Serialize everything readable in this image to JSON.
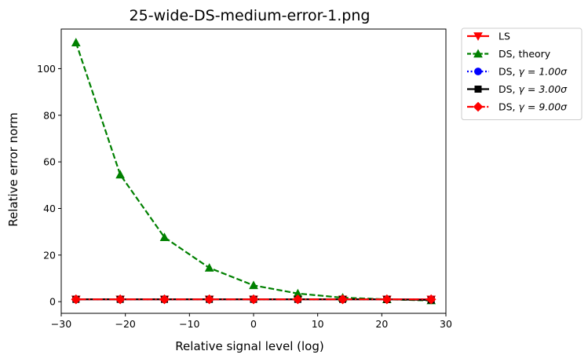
{
  "chart_data": {
    "type": "line",
    "title": "25-wide-DS-medium-error-1.png",
    "xlabel": "Relative signal level (log)",
    "ylabel": "Relative error norm",
    "xlim": [
      -30,
      30
    ],
    "ylim": [
      -5,
      117
    ],
    "xticks": [
      -30,
      -20,
      -10,
      0,
      10,
      20,
      30
    ],
    "xtick_labels": [
      "−30",
      "−20",
      "−10",
      "0",
      "10",
      "20",
      "30"
    ],
    "yticks": [
      0,
      20,
      40,
      60,
      80,
      100
    ],
    "ytick_labels": [
      "0",
      "20",
      "40",
      "60",
      "80",
      "100"
    ],
    "x": [
      -27.7,
      -20.8,
      -13.9,
      -6.9,
      0,
      6.9,
      13.9,
      20.8,
      27.7
    ],
    "legend_position": "outside-top-right",
    "series": [
      {
        "name": "LS",
        "legend_prefix": "LS",
        "legend_gamma": "",
        "color": "#ff0000",
        "marker": "triangle-down",
        "linestyle": "solid",
        "values": [
          1,
          1,
          1,
          1,
          1,
          1,
          1,
          1,
          1
        ]
      },
      {
        "name": "DS, theory",
        "legend_prefix": "DS, theory",
        "legend_gamma": "",
        "color": "#008000",
        "marker": "triangle-up",
        "linestyle": "dashed",
        "values": [
          111.2,
          54.5,
          27.6,
          14.5,
          7.0,
          3.5,
          1.7,
          1.0,
          0.5
        ]
      },
      {
        "name": "DS, γ = 1.00σ",
        "legend_prefix": "DS, ",
        "legend_gamma": "γ = 1.00σ",
        "color": "#0000ff",
        "marker": "circle",
        "linestyle": "dotted",
        "values": [
          1,
          1,
          1,
          1,
          1,
          1,
          1,
          1,
          1
        ]
      },
      {
        "name": "DS, γ = 3.00σ",
        "legend_prefix": "DS, ",
        "legend_gamma": "γ = 3.00σ",
        "color": "#000000",
        "marker": "square",
        "linestyle": "solid",
        "values": [
          1,
          1,
          1,
          1,
          1,
          1,
          1,
          1,
          0.7
        ]
      },
      {
        "name": "DS, γ = 9.00σ",
        "legend_prefix": "DS, ",
        "legend_gamma": "γ = 9.00σ",
        "color": "#ff0000",
        "marker": "diamond",
        "linestyle": "dashdot",
        "values": [
          1,
          1,
          1,
          1,
          1,
          1,
          1,
          1,
          1
        ]
      }
    ]
  }
}
